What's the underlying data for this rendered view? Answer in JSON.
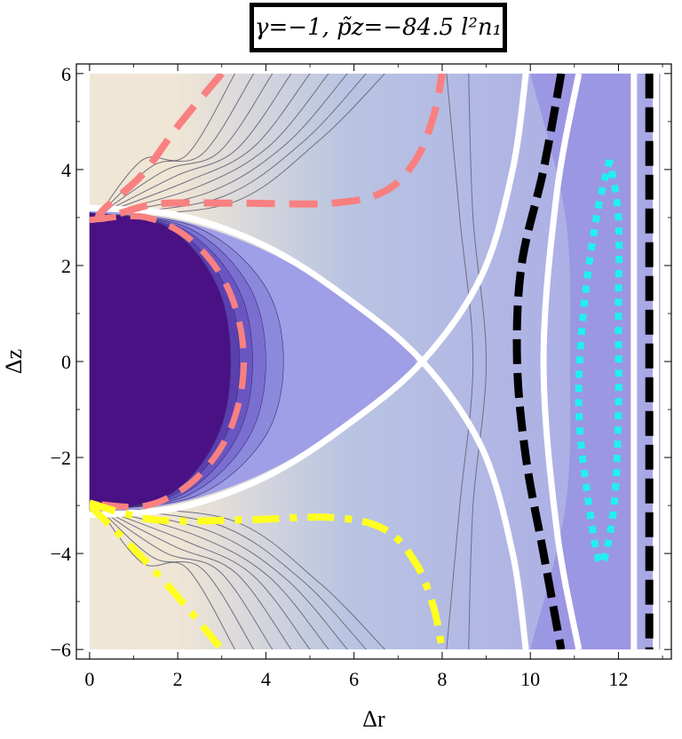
{
  "chart_data": {
    "type": "contour",
    "title": "γ=−1,  p̃z=−84.5 l²n₁",
    "xlabel": "Δr",
    "ylabel": "Δz",
    "xlim": [
      -0.3,
      13.2
    ],
    "ylim": [
      -6.2,
      6.2
    ],
    "x_ticks": [
      {
        "value": 0,
        "label": "0"
      },
      {
        "value": 2,
        "label": "2"
      },
      {
        "value": 4,
        "label": "4"
      },
      {
        "value": 6,
        "label": "6"
      },
      {
        "value": 8,
        "label": "8"
      },
      {
        "value": 10,
        "label": "10"
      },
      {
        "value": 12,
        "label": "12"
      }
    ],
    "y_ticks": [
      {
        "value": -6,
        "label": "−6"
      },
      {
        "value": -4,
        "label": "−4"
      },
      {
        "value": -2,
        "label": "−2"
      },
      {
        "value": 0,
        "label": "0"
      },
      {
        "value": 2,
        "label": "2"
      },
      {
        "value": 4,
        "label": "4"
      },
      {
        "value": 6,
        "label": "6"
      }
    ],
    "plot_region": {
      "x": [
        0,
        12.95
      ],
      "y": [
        -6,
        6
      ]
    },
    "separatrix_point": [
      7.55,
      0
    ],
    "colors": {
      "background": "#f0e6d5",
      "inner_core": "#4a1184",
      "mid_band": "#9f9ee6",
      "outer_band": "#9b97e2",
      "white_separatrix": "#ffffff",
      "pink_dashed": "#f88080",
      "yellow_dashdot": "#ffff22",
      "black_dashed": "#000000",
      "cyan_dotted": "#22f0f0"
    },
    "curves": {
      "pink_upper": [
        [
          3.0,
          6.0
        ],
        [
          2.0,
          4.9
        ],
        [
          1.2,
          3.9
        ],
        [
          0.2,
          3.0
        ],
        [
          1.5,
          3.28
        ],
        [
          3.3,
          3.3
        ],
        [
          5.5,
          3.3
        ],
        [
          6.7,
          3.55
        ],
        [
          7.4,
          4.2
        ],
        [
          7.8,
          5.1
        ],
        [
          8.0,
          6.0
        ]
      ],
      "pink_arc": [
        [
          0,
          2.95
        ],
        [
          1.3,
          3.0
        ],
        [
          2.4,
          2.45
        ],
        [
          3.2,
          1.4
        ],
        [
          3.5,
          0
        ],
        [
          3.2,
          -1.4
        ],
        [
          2.4,
          -2.45
        ],
        [
          1.3,
          -3.0
        ],
        [
          0,
          -2.95
        ]
      ],
      "yellow_lower": [
        [
          0,
          -2.95
        ],
        [
          1.5,
          -3.3
        ],
        [
          3.5,
          -3.3
        ],
        [
          5.5,
          -3.25
        ],
        [
          6.7,
          -3.5
        ],
        [
          7.4,
          -4.2
        ],
        [
          7.8,
          -5.1
        ],
        [
          8.0,
          -6.0
        ]
      ],
      "yellow_left": [
        [
          0,
          -3.0
        ],
        [
          1.0,
          -3.9
        ],
        [
          2.0,
          -4.9
        ],
        [
          3.0,
          -6.0
        ]
      ],
      "black_right": [
        [
          10.7,
          6.0
        ],
        [
          10.3,
          4.0
        ],
        [
          9.8,
          2.0
        ],
        [
          9.7,
          0
        ],
        [
          9.9,
          -2.0
        ],
        [
          10.3,
          -4.0
        ],
        [
          10.7,
          -6.0
        ]
      ],
      "black_vertical": [
        [
          12.7,
          6.0
        ],
        [
          12.7,
          -6.0
        ]
      ],
      "cyan_loop": [
        [
          11.8,
          4.2
        ],
        [
          11.5,
          3.0
        ],
        [
          11.2,
          1.0
        ],
        [
          11.1,
          -1.0
        ],
        [
          11.3,
          -2.8
        ],
        [
          11.6,
          -4.2
        ],
        [
          11.9,
          -3.0
        ],
        [
          12.0,
          -1.0
        ],
        [
          12.0,
          1.0
        ],
        [
          12.0,
          3.0
        ],
        [
          11.8,
          4.2
        ]
      ]
    }
  }
}
